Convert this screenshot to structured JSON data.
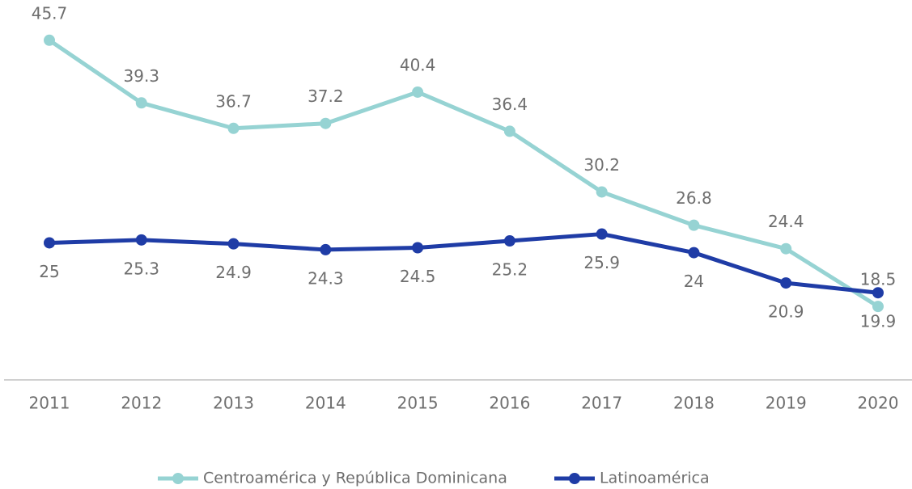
{
  "chart_data": {
    "type": "line",
    "categories": [
      "2011",
      "2012",
      "2013",
      "2014",
      "2015",
      "2016",
      "2017",
      "2018",
      "2019",
      "2020"
    ],
    "series": [
      {
        "name": "Centroamérica y República Dominicana",
        "color": "#96d3d3",
        "values": [
          45.7,
          39.3,
          36.7,
          37.2,
          40.4,
          36.4,
          30.2,
          26.8,
          24.4,
          18.5
        ]
      },
      {
        "name": "Latinoamérica",
        "color": "#1f3ca6",
        "values": [
          25,
          25.3,
          24.9,
          24.3,
          24.5,
          25.2,
          25.9,
          24,
          20.9,
          19.9
        ]
      }
    ],
    "ylim": [
      11,
      50
    ],
    "legend": "bottom"
  }
}
